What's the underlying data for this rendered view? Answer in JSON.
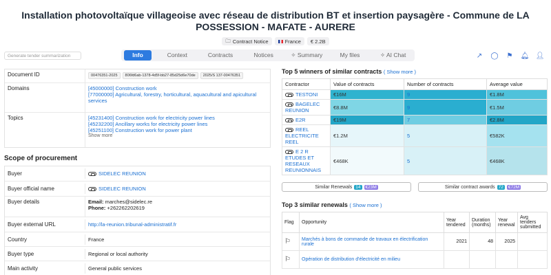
{
  "title": "Installation photovoltaïque villageoise avec réseau de distribution BT et insertion paysagère - Commune de LA POSSESSION - MAFATE - AURERE",
  "badges": {
    "notice": "Contract Notice",
    "country": "France",
    "value": "€ 2.2B"
  },
  "gen_button": "Generate tender summarization",
  "tabs": [
    "Info",
    "Context",
    "Contracts",
    "Notices",
    "Summary",
    "My files",
    "AI Chat"
  ],
  "icons": [
    "share-icon",
    "comment-icon",
    "flag-icon",
    "bell-icon",
    "add-user-icon"
  ],
  "left": {
    "doc_id_label": "Document ID",
    "doc_ids": [
      "00476351-2025",
      "806fd6ab-1378-4d5f-bb27-85d25d6e70de",
      "2025/S 137-00476351"
    ],
    "domains_label": "Domains",
    "domains": [
      "[45000000] Construction work",
      "[77000000] Agricultural, forestry, horticultural, aquacultural and apicultural services"
    ],
    "topics_label": "Topics",
    "topics": [
      "[45231400] Construction work for electricity power lines",
      "[45232200] Ancillary works for electricity power lines",
      "[45251100] Construction work for power plant"
    ],
    "show_more": "Show more",
    "scope_title": "Scope of procurement",
    "buyer_label": "Buyer",
    "buyer": "SIDELEC REUNION",
    "buyer_official_label": "Buyer official name",
    "buyer_official": "SIDELEC REUNION",
    "buyer_details_label": "Buyer details",
    "email_label": "Email:",
    "email": "marches@sidelec.re",
    "phone_label": "Phone:",
    "phone": "+262262202619",
    "buyer_url_label": "Buyer external URL",
    "buyer_url": "http://la-reunion.tribunal-administratif.fr",
    "country_label": "Country",
    "country": "France",
    "buyer_type_label": "Buyer type",
    "buyer_type": "Regional or local authority",
    "main_activity_label": "Main activity",
    "main_activity": "General public services"
  },
  "winners": {
    "title": "Top 5 winners of similar contracts",
    "show_more": "( Show more )",
    "headers": [
      "Contractor",
      "Value of contracts",
      "Number of contracts",
      "Average value"
    ],
    "rows": [
      {
        "name": "TESTONI",
        "value": "€16M",
        "count": "9",
        "avg": "€1.8M"
      },
      {
        "name": "BAGELEC REUNION",
        "value": "€8.8M",
        "count": "9",
        "avg": "€1.5M"
      },
      {
        "name": "E2R",
        "value": "€19M",
        "count": "7",
        "avg": "€2.8M"
      },
      {
        "name": "REEL ELECTRICITE REEL",
        "value": "€1.2M",
        "count": "5",
        "avg": "€582K"
      },
      {
        "name": "E 2 R ETUDES ET RESEAUX REUNIONNAIS",
        "value": "€468K",
        "count": "5",
        "avg": "€468K"
      }
    ],
    "colors": {
      "value": [
        "#2fb3cf",
        "#7fd6e5",
        "#23a6c7",
        "#e6f6fa",
        "#f2fafc"
      ],
      "count": [
        "#2aaed0",
        "#2aaed0",
        "#6fcde2",
        "#d8f1f7",
        "#d8f1f7"
      ],
      "avg": [
        "#4fc2db",
        "#6fcde2",
        "#23a6c7",
        "#a5e2ef",
        "#b5e3ec"
      ]
    }
  },
  "similar": {
    "renewals_label": "Similar Renewals",
    "renewals_count": "14",
    "renewals_value": "€23M",
    "awards_label": "Similar contract awards",
    "awards_count": "72",
    "awards_value": "€72M"
  },
  "renewals": {
    "title": "Top 3 similar renewals",
    "show_more": "( Show more )",
    "headers": [
      "Flag",
      "Opportunity",
      "Year tendered",
      "Duration (months)",
      "Year renewal",
      "Avg tenders submitted"
    ],
    "rows": [
      {
        "opportunity": "Marchés à bons de commande de travaux en électrification rurale",
        "year": "2021",
        "duration": "48",
        "renewal": "2025",
        "avg": ""
      },
      {
        "opportunity": "Opération de distribution d'électricité en milieu",
        "year": "",
        "duration": "",
        "renewal": "",
        "avg": ""
      }
    ]
  }
}
